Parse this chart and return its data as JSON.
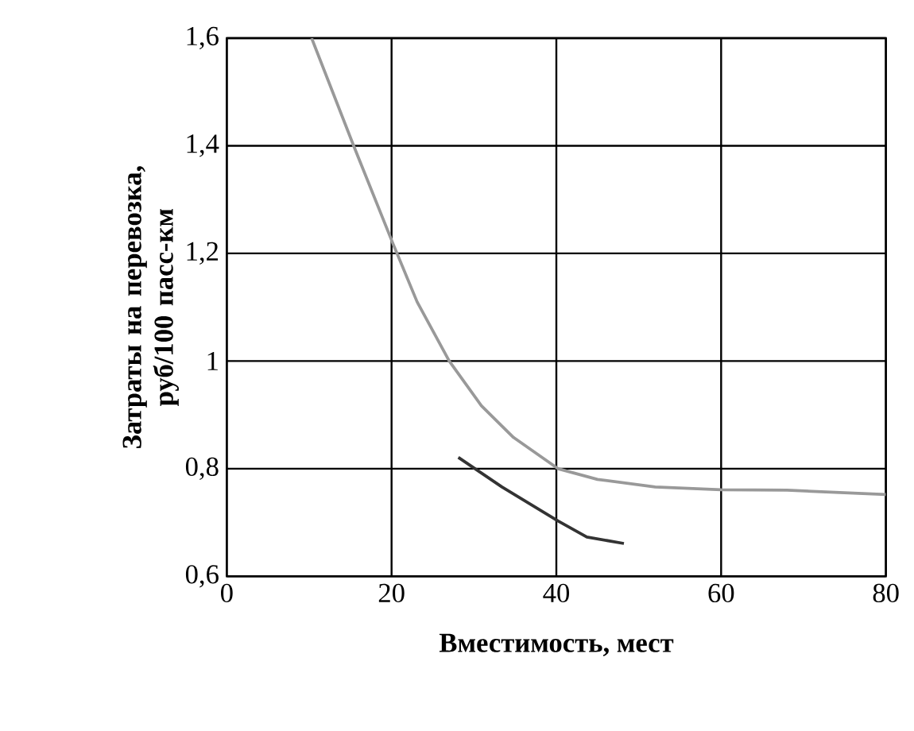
{
  "chart_data": {
    "type": "line",
    "xlabel": "Вместимость, мест",
    "ylabel": "Затраты  на перевозка, руб/100 пасс-км",
    "xlim": [
      0,
      80
    ],
    "xticks": [
      0,
      20,
      40,
      60,
      80
    ],
    "ylim": [
      0.6,
      1.6
    ],
    "yticks": [
      {
        "value": 0.6,
        "label": "0,6"
      },
      {
        "value": 0.8,
        "label": "0,8"
      },
      {
        "value": 1,
        "label": "1"
      },
      {
        "value": 1.2,
        "label": "1,2"
      },
      {
        "value": 1.4,
        "label": "1,4"
      },
      {
        "value": 1.6,
        "label": "1,6"
      }
    ],
    "grid": true,
    "marker": "none",
    "line_style": "solid",
    "series": [
      {
        "color": "#999999",
        "x": [
          10.3,
          15.4,
          20.2,
          23.1,
          27,
          30.9,
          34.8,
          40.2,
          45,
          52,
          60,
          68,
          80
        ],
        "values": [
          1.6,
          1.4,
          1.217,
          1.11,
          1.0,
          0.917,
          0.858,
          0.8,
          0.78,
          0.766,
          0.761,
          0.76,
          0.752
        ]
      },
      {
        "color": "#333333",
        "x": [
          28.1,
          33.4,
          40.2,
          43.7,
          48.2
        ],
        "values": [
          0.821,
          0.766,
          0.703,
          0.673,
          0.661
        ]
      }
    ]
  }
}
